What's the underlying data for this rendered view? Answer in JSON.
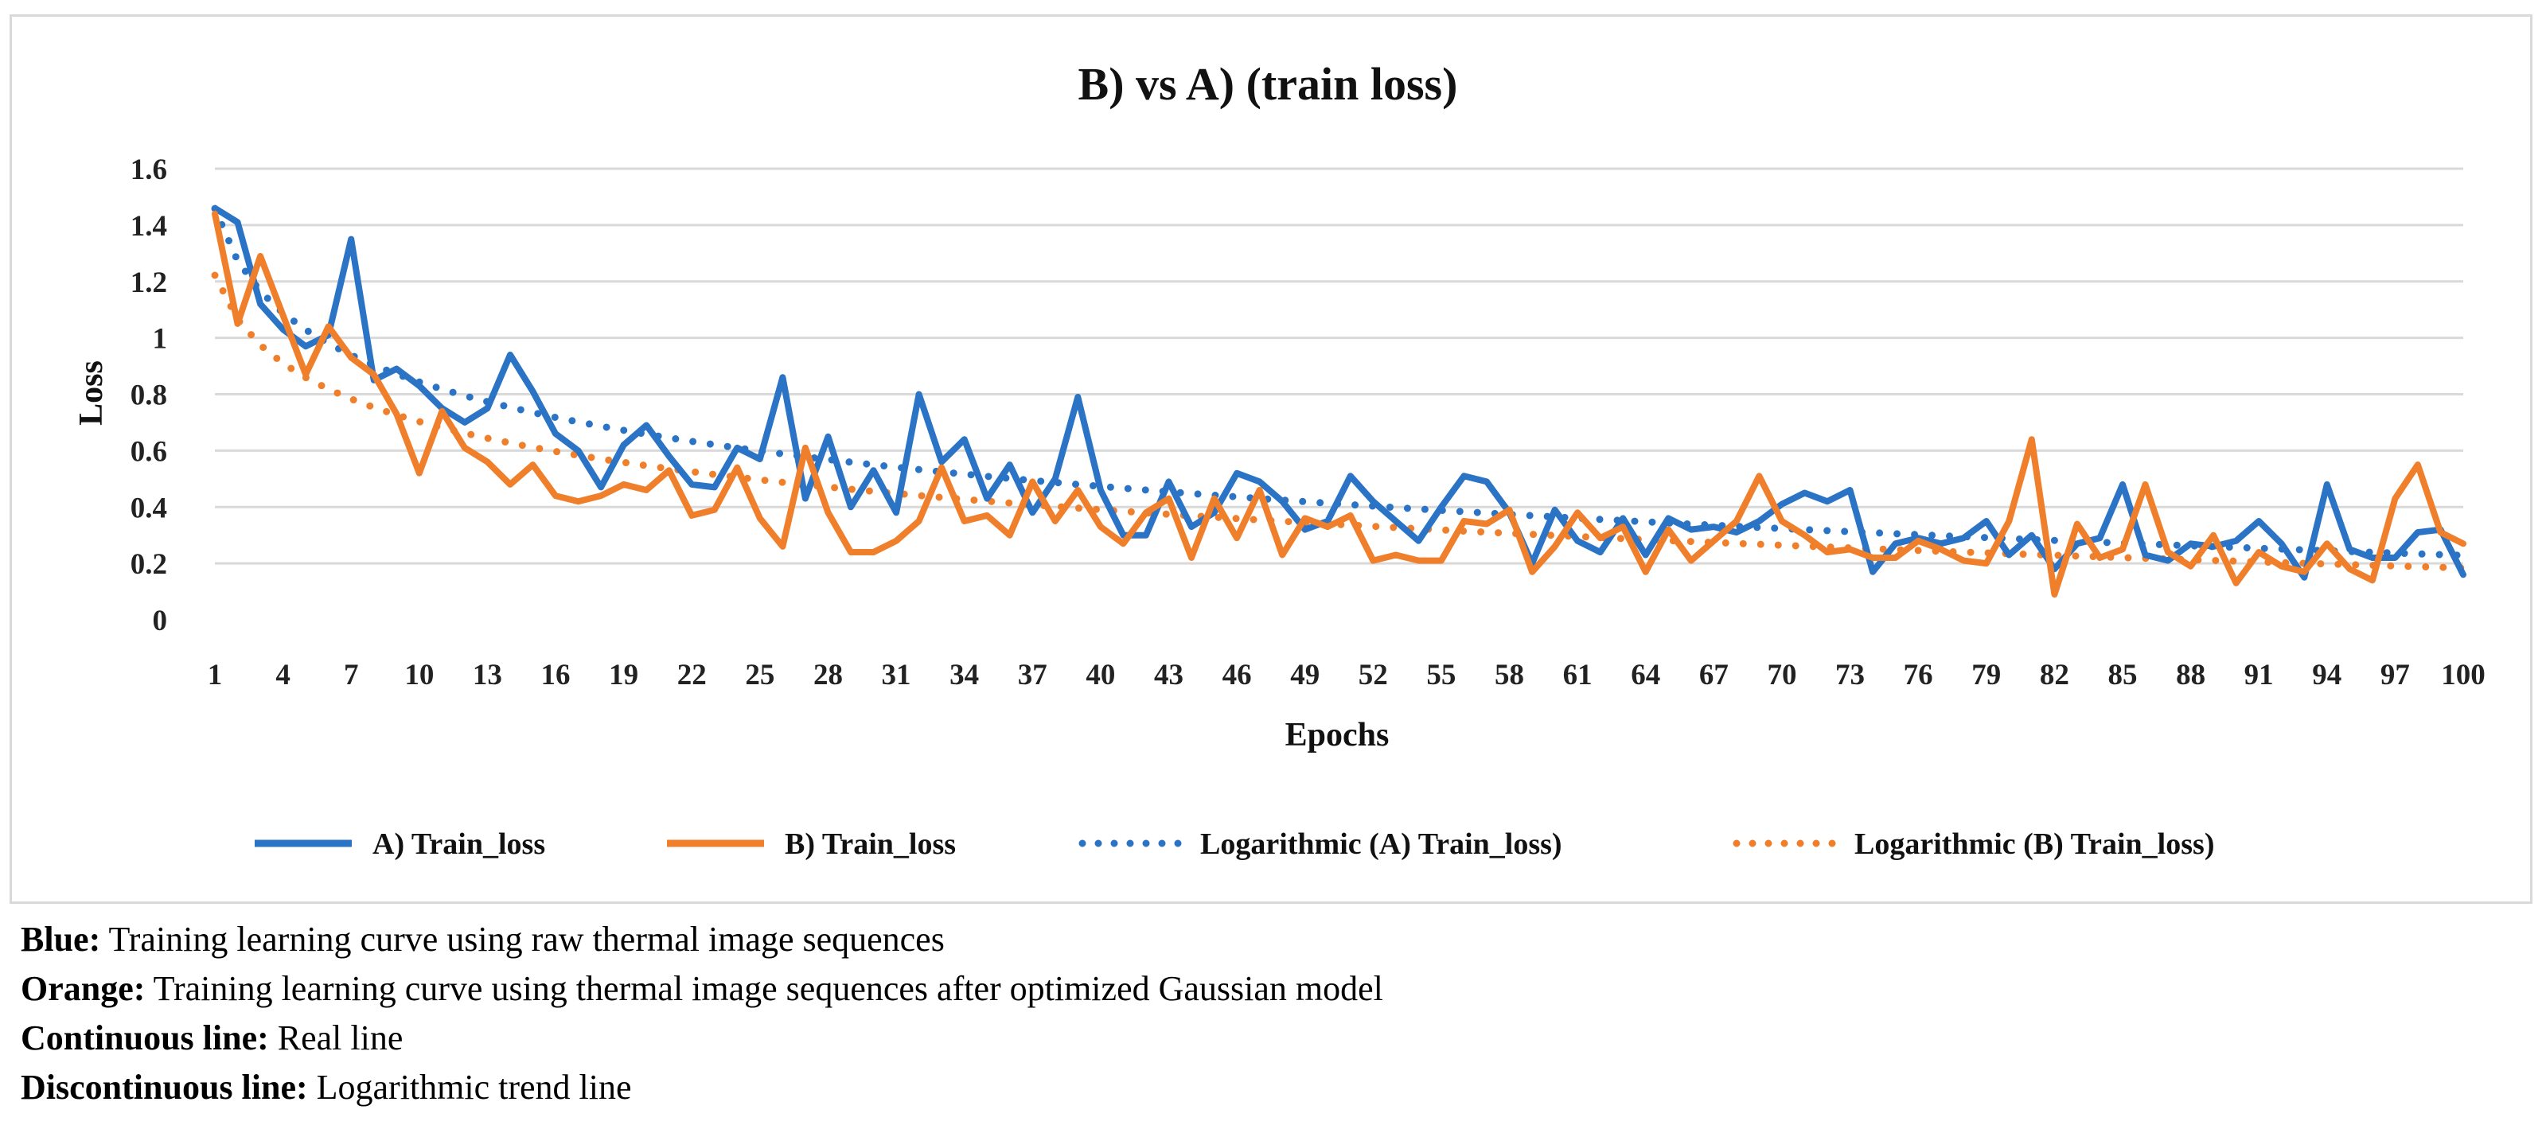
{
  "chart_data": {
    "type": "line",
    "title": "B) vs A) (train loss)",
    "xlabel": "Epochs",
    "ylabel": "Loss",
    "ylim": [
      0,
      1.6
    ],
    "yticks": [
      "0",
      "0.2",
      "0.4",
      "0.6",
      "0.8",
      "1",
      "1.2",
      "1.4",
      "1.6"
    ],
    "xticks": [
      1,
      4,
      7,
      10,
      13,
      16,
      19,
      22,
      25,
      28,
      31,
      34,
      37,
      40,
      43,
      46,
      49,
      52,
      55,
      58,
      61,
      64,
      67,
      70,
      73,
      76,
      79,
      82,
      85,
      88,
      91,
      94,
      97,
      100
    ],
    "grid": true,
    "legend_position": "bottom",
    "x": [
      1,
      2,
      3,
      4,
      5,
      6,
      7,
      8,
      9,
      10,
      11,
      12,
      13,
      14,
      15,
      16,
      17,
      18,
      19,
      20,
      21,
      22,
      23,
      24,
      25,
      26,
      27,
      28,
      29,
      30,
      31,
      32,
      33,
      34,
      35,
      36,
      37,
      38,
      39,
      40,
      41,
      42,
      43,
      44,
      45,
      46,
      47,
      48,
      49,
      50,
      51,
      52,
      53,
      54,
      55,
      56,
      57,
      58,
      59,
      60,
      61,
      62,
      63,
      64,
      65,
      66,
      67,
      68,
      69,
      70,
      71,
      72,
      73,
      74,
      75,
      76,
      77,
      78,
      79,
      80,
      81,
      82,
      83,
      84,
      85,
      86,
      87,
      88,
      89,
      90,
      91,
      92,
      93,
      94,
      95,
      96,
      97,
      98,
      99,
      100
    ],
    "series": [
      {
        "name": "A) Train_loss",
        "color": "#2a73c5",
        "style": "solid",
        "values": [
          1.46,
          1.41,
          1.12,
          1.03,
          0.97,
          1.01,
          1.35,
          0.85,
          0.89,
          0.83,
          0.75,
          0.7,
          0.75,
          0.94,
          0.81,
          0.66,
          0.6,
          0.47,
          0.62,
          0.69,
          0.58,
          0.48,
          0.47,
          0.61,
          0.57,
          0.86,
          0.43,
          0.65,
          0.4,
          0.53,
          0.38,
          0.8,
          0.56,
          0.64,
          0.43,
          0.55,
          0.38,
          0.5,
          0.79,
          0.46,
          0.3,
          0.3,
          0.49,
          0.33,
          0.38,
          0.52,
          0.49,
          0.42,
          0.32,
          0.35,
          0.51,
          0.42,
          0.35,
          0.28,
          0.4,
          0.51,
          0.49,
          0.38,
          0.2,
          0.39,
          0.28,
          0.24,
          0.36,
          0.23,
          0.36,
          0.32,
          0.33,
          0.31,
          0.35,
          0.41,
          0.45,
          0.42,
          0.46,
          0.17,
          0.27,
          0.29,
          0.27,
          0.29,
          0.35,
          0.23,
          0.3,
          0.18,
          0.27,
          0.29,
          0.48,
          0.23,
          0.21,
          0.27,
          0.26,
          0.28,
          0.35,
          0.27,
          0.15,
          0.48,
          0.25,
          0.22,
          0.22,
          0.31,
          0.32,
          0.16
        ]
      },
      {
        "name": "B) Train_loss",
        "color": "#f07f2c",
        "style": "solid",
        "values": [
          1.44,
          1.05,
          1.29,
          1.08,
          0.87,
          1.04,
          0.93,
          0.87,
          0.73,
          0.52,
          0.74,
          0.61,
          0.56,
          0.48,
          0.55,
          0.44,
          0.42,
          0.44,
          0.48,
          0.46,
          0.53,
          0.37,
          0.39,
          0.54,
          0.36,
          0.26,
          0.61,
          0.38,
          0.24,
          0.24,
          0.28,
          0.35,
          0.54,
          0.35,
          0.37,
          0.3,
          0.49,
          0.35,
          0.46,
          0.33,
          0.27,
          0.38,
          0.43,
          0.22,
          0.43,
          0.29,
          0.46,
          0.23,
          0.36,
          0.33,
          0.37,
          0.21,
          0.23,
          0.21,
          0.21,
          0.35,
          0.34,
          0.39,
          0.17,
          0.26,
          0.38,
          0.29,
          0.33,
          0.17,
          0.32,
          0.21,
          0.28,
          0.35,
          0.51,
          0.35,
          0.3,
          0.24,
          0.25,
          0.22,
          0.22,
          0.28,
          0.25,
          0.21,
          0.2,
          0.35,
          0.64,
          0.09,
          0.34,
          0.22,
          0.25,
          0.48,
          0.24,
          0.19,
          0.3,
          0.13,
          0.24,
          0.19,
          0.17,
          0.27,
          0.18,
          0.14,
          0.43,
          0.55,
          0.31,
          0.27
        ]
      },
      {
        "name": "Logarithmic (A) Train_loss)",
        "color": "#2a73c5",
        "style": "dotted",
        "fit": "logarithmic",
        "source": "A) Train_loss"
      },
      {
        "name": "Logarithmic (B) Train_loss)",
        "color": "#f07f2c",
        "style": "dotted",
        "fit": "logarithmic",
        "source": "B) Train_loss"
      }
    ]
  },
  "captions": [
    {
      "label": "Blue:",
      "text": " Training learning curve using raw thermal image sequences"
    },
    {
      "label": "Orange:",
      "text": " Training learning curve using thermal image sequences after optimized Gaussian model"
    },
    {
      "label": "Continuous line:",
      "text": " Real line"
    },
    {
      "label": "Discontinuous line:",
      "text": " Logarithmic trend line"
    }
  ]
}
